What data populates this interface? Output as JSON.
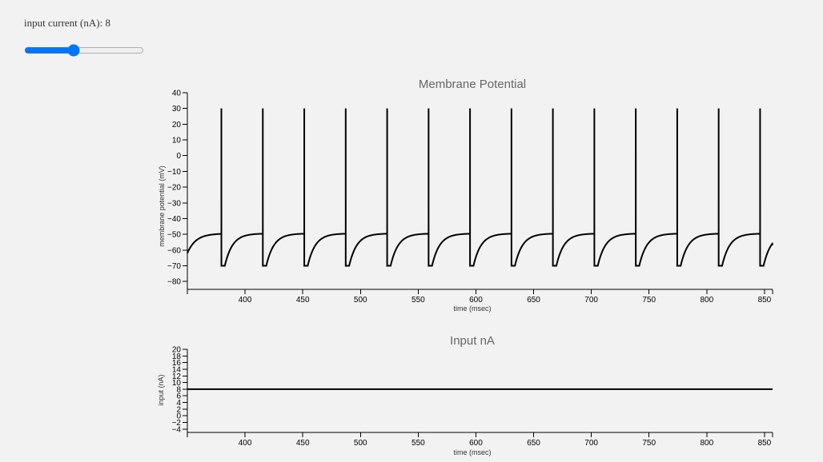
{
  "controls": {
    "slider_label_prefix": "input current (nA): ",
    "slider_value": "8",
    "slider_min": "0",
    "slider_max": "20",
    "slider_step": "1"
  },
  "chart_data": [
    {
      "type": "line",
      "title": "Membrane Potential",
      "xlabel": "time (msec)",
      "ylabel": "membrane potential (mV)",
      "xlim": [
        350,
        857
      ],
      "ylim": [
        -85,
        40
      ],
      "xticks": [
        400,
        450,
        500,
        550,
        600,
        650,
        700,
        750,
        800,
        850
      ],
      "yticks": [
        40,
        30,
        20,
        10,
        0,
        -10,
        -20,
        -30,
        -40,
        -50,
        -60,
        -70,
        -80
      ],
      "grid": false,
      "series": [
        {
          "color": "#000000",
          "spike_times": [
            379.5,
            415.4,
            451.3,
            487.2,
            523.1,
            559.0,
            594.9,
            630.8,
            666.7,
            702.6,
            738.5,
            774.4,
            810.3,
            846.2
          ],
          "spike_peak": 30,
          "reset_value": -70,
          "refractory_ms": 3,
          "plateau_value": -49.5,
          "start_value": -62,
          "end_value": -57
        }
      ]
    },
    {
      "type": "line",
      "title": "Input nA",
      "xlabel": "time (msec)",
      "ylabel": "input (nA)",
      "xlim": [
        350,
        857
      ],
      "ylim": [
        -5,
        20
      ],
      "xticks": [
        400,
        450,
        500,
        550,
        600,
        650,
        700,
        750,
        800,
        850
      ],
      "yticks": [
        20,
        18,
        16,
        14,
        12,
        10,
        8,
        6,
        4,
        2,
        0,
        -2,
        -4
      ],
      "grid": false,
      "series": [
        {
          "color": "#000000",
          "x": [
            350,
            857
          ],
          "y": [
            8,
            8
          ]
        }
      ]
    }
  ]
}
